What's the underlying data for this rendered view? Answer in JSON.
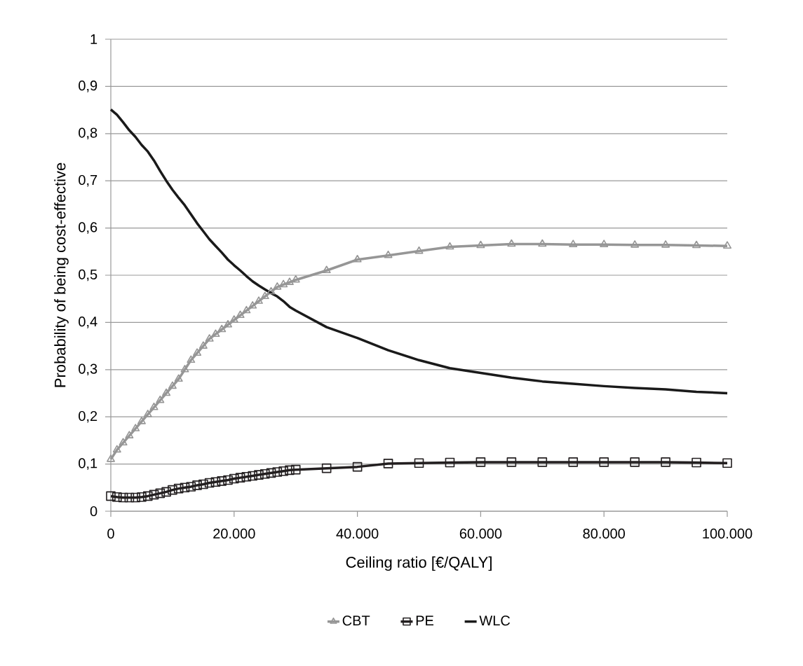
{
  "chart_data": {
    "type": "line",
    "xlabel": "Ceiling ratio [€/QALY]",
    "ylabel": "Probability of being cost-effective",
    "x": [
      0,
      1000,
      2000,
      3000,
      4000,
      5000,
      6000,
      7000,
      8000,
      9000,
      10000,
      11000,
      12000,
      13000,
      14000,
      15000,
      16000,
      17000,
      18000,
      19000,
      20000,
      21000,
      22000,
      23000,
      24000,
      25000,
      26000,
      27000,
      28000,
      29000,
      30000,
      35000,
      40000,
      45000,
      50000,
      55000,
      60000,
      65000,
      70000,
      75000,
      80000,
      85000,
      90000,
      95000,
      100000
    ],
    "series": [
      {
        "name": "CBT",
        "color": "#969696",
        "marker": "triangle",
        "values": [
          0.11,
          0.13,
          0.145,
          0.16,
          0.175,
          0.19,
          0.205,
          0.22,
          0.235,
          0.25,
          0.265,
          0.28,
          0.3,
          0.32,
          0.335,
          0.35,
          0.365,
          0.375,
          0.385,
          0.395,
          0.405,
          0.415,
          0.425,
          0.435,
          0.445,
          0.455,
          0.465,
          0.475,
          0.48,
          0.485,
          0.49,
          0.51,
          0.533,
          0.542,
          0.551,
          0.56,
          0.563,
          0.566,
          0.566,
          0.565,
          0.565,
          0.564,
          0.564,
          0.563,
          0.562
        ]
      },
      {
        "name": "PE",
        "color": "#231f20",
        "marker": "square",
        "values": [
          0.032,
          0.03,
          0.029,
          0.029,
          0.029,
          0.03,
          0.032,
          0.035,
          0.038,
          0.041,
          0.045,
          0.048,
          0.05,
          0.052,
          0.055,
          0.057,
          0.06,
          0.062,
          0.064,
          0.066,
          0.069,
          0.071,
          0.073,
          0.075,
          0.077,
          0.079,
          0.081,
          0.083,
          0.085,
          0.087,
          0.088,
          0.091,
          0.094,
          0.101,
          0.102,
          0.103,
          0.104,
          0.104,
          0.104,
          0.104,
          0.104,
          0.104,
          0.104,
          0.103,
          0.102
        ]
      },
      {
        "name": "WLC",
        "color": "#1a1a1a",
        "marker": "none",
        "values": [
          0.851,
          0.84,
          0.824,
          0.807,
          0.793,
          0.776,
          0.762,
          0.743,
          0.721,
          0.7,
          0.681,
          0.664,
          0.648,
          0.629,
          0.61,
          0.593,
          0.576,
          0.562,
          0.548,
          0.533,
          0.521,
          0.51,
          0.498,
          0.487,
          0.478,
          0.47,
          0.462,
          0.455,
          0.445,
          0.433,
          0.425,
          0.39,
          0.367,
          0.341,
          0.32,
          0.303,
          0.293,
          0.283,
          0.275,
          0.27,
          0.265,
          0.261,
          0.258,
          0.253,
          0.25
        ]
      }
    ],
    "xlim": [
      0,
      100000
    ],
    "xticks": [
      0,
      {
        "value": 20000,
        "label": "20.000"
      },
      {
        "value": 40000,
        "label": "40.000"
      },
      {
        "value": 60000,
        "label": "60.000"
      },
      {
        "value": 80000,
        "label": "80.000"
      },
      {
        "value": 100000,
        "label": "100.000"
      }
    ],
    "ylim": [
      0,
      1
    ],
    "yticks": [
      0,
      {
        "value": 0.1,
        "label": "0,1"
      },
      {
        "value": 0.2,
        "label": "0,2"
      },
      {
        "value": 0.3,
        "label": "0,3"
      },
      {
        "value": 0.4,
        "label": "0,4"
      },
      {
        "value": 0.5,
        "label": "0,5"
      },
      {
        "value": 0.6,
        "label": "0,6"
      },
      {
        "value": 0.7,
        "label": "0,7"
      },
      {
        "value": 0.8,
        "label": "0,8"
      },
      {
        "value": 0.9,
        "label": "0,9"
      },
      1
    ],
    "grid": "y",
    "legend": "bottom"
  }
}
